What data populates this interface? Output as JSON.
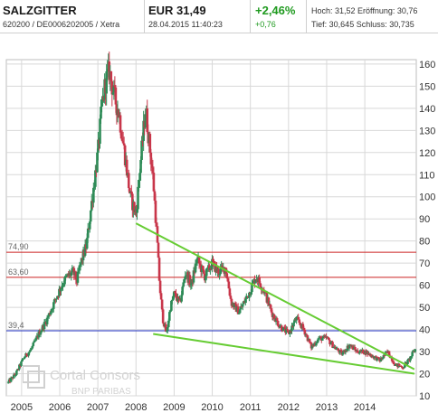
{
  "header": {
    "name": "SALZGITTER",
    "ids": "620200 / DE0006202005 / Xetra",
    "price": "EUR 31,49",
    "datetime": "28.04.2015 11:40:23",
    "change_pct": "+2,46%",
    "change_abs": "+0,76",
    "stats_row1": "Hoch: 31,52  Eröffnung: 30,76",
    "stats_row2": "Tief: 30,645  Schluss: 30,735"
  },
  "watermark": {
    "line1": "Cortal Consors",
    "line2": "BNP PARIBAS"
  },
  "colors": {
    "up": "#2e8b57",
    "down": "#c8364a",
    "trendline": "#66cc33",
    "level_red": "#cc2222",
    "level_blue": "#1f2fbf",
    "grid": "#d8d8d8",
    "positive_change": "#1f9a1f"
  },
  "chart_data": {
    "type": "candlestick",
    "x_ticks": [
      "2005",
      "2006",
      "2007",
      "2008",
      "2009",
      "2010",
      "2011",
      "2012",
      "2013",
      "2014"
    ],
    "y_ticks": [
      10,
      20,
      30,
      40,
      50,
      60,
      70,
      80,
      90,
      100,
      110,
      120,
      130,
      140,
      150,
      160
    ],
    "ylim": [
      10,
      162
    ],
    "xlim": [
      2004.6,
      2015.35
    ],
    "grid": true,
    "price_path": [
      [
        2004.65,
        16
      ],
      [
        2004.85,
        20
      ],
      [
        2005.05,
        27
      ],
      [
        2005.25,
        31
      ],
      [
        2005.45,
        38
      ],
      [
        2005.65,
        44
      ],
      [
        2005.8,
        50
      ],
      [
        2005.95,
        56
      ],
      [
        2006.05,
        60
      ],
      [
        2006.2,
        64
      ],
      [
        2006.35,
        66
      ],
      [
        2006.45,
        62
      ],
      [
        2006.55,
        70
      ],
      [
        2006.7,
        78
      ],
      [
        2006.8,
        92
      ],
      [
        2006.9,
        106
      ],
      [
        2007.0,
        120
      ],
      [
        2007.1,
        140
      ],
      [
        2007.2,
        152
      ],
      [
        2007.3,
        157
      ],
      [
        2007.42,
        146
      ],
      [
        2007.55,
        138
      ],
      [
        2007.7,
        120
      ],
      [
        2007.85,
        100
      ],
      [
        2008.0,
        92
      ],
      [
        2008.1,
        112
      ],
      [
        2008.25,
        140
      ],
      [
        2008.35,
        124
      ],
      [
        2008.45,
        108
      ],
      [
        2008.55,
        82
      ],
      [
        2008.62,
        60
      ],
      [
        2008.7,
        45
      ],
      [
        2008.8,
        38
      ],
      [
        2008.9,
        50
      ],
      [
        2009.0,
        56
      ],
      [
        2009.15,
        52
      ],
      [
        2009.3,
        66
      ],
      [
        2009.45,
        60
      ],
      [
        2009.6,
        72
      ],
      [
        2009.8,
        64
      ],
      [
        2010.0,
        70
      ],
      [
        2010.15,
        66
      ],
      [
        2010.35,
        68
      ],
      [
        2010.5,
        52
      ],
      [
        2010.7,
        48
      ],
      [
        2010.95,
        56
      ],
      [
        2011.15,
        64
      ],
      [
        2011.35,
        58
      ],
      [
        2011.55,
        48
      ],
      [
        2011.75,
        42
      ],
      [
        2012.0,
        38
      ],
      [
        2012.2,
        45
      ],
      [
        2012.4,
        40
      ],
      [
        2012.6,
        32
      ],
      [
        2012.8,
        36
      ],
      [
        2013.0,
        36
      ],
      [
        2013.2,
        32
      ],
      [
        2013.4,
        29
      ],
      [
        2013.6,
        33
      ],
      [
        2013.8,
        30
      ],
      [
        2014.0,
        30
      ],
      [
        2014.2,
        28
      ],
      [
        2014.4,
        26
      ],
      [
        2014.6,
        30
      ],
      [
        2014.8,
        24
      ],
      [
        2015.0,
        23
      ],
      [
        2015.15,
        26
      ],
      [
        2015.32,
        31
      ]
    ],
    "horizontal_levels": [
      {
        "value": 74.9,
        "label": "74,90",
        "color": "red"
      },
      {
        "value": 63.6,
        "label": "63,60",
        "color": "red"
      },
      {
        "value": 39.4,
        "label": "39,4",
        "color": "blue"
      }
    ],
    "trendlines": [
      {
        "from": [
          2008.0,
          88
        ],
        "to": [
          2015.3,
          22
        ]
      },
      {
        "from": [
          2008.45,
          38
        ],
        "to": [
          2015.3,
          20
        ]
      }
    ]
  }
}
